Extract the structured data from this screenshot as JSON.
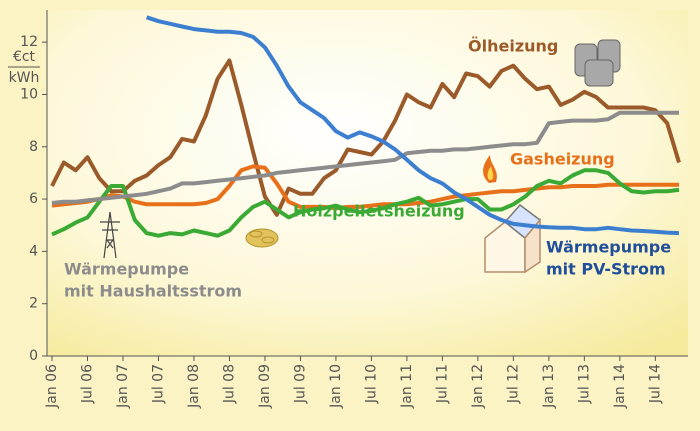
{
  "chart_data": {
    "type": "line",
    "y_unit": [
      "€ct",
      "kWh"
    ],
    "categories": [
      "Jan 06",
      null,
      null,
      "Jul 06",
      null,
      null,
      "Jan 07",
      null,
      null,
      "Jul 07",
      null,
      null,
      "Jan 08",
      null,
      null,
      "Jul 08",
      null,
      null,
      "Jan 09",
      null,
      null,
      "Jul 09",
      null,
      null,
      "Jan 10",
      null,
      null,
      "Jul 10",
      null,
      null,
      "Jan 11",
      null,
      null,
      "Jul 11",
      null,
      null,
      "Jan 12",
      null,
      null,
      "Jul 12",
      null,
      null,
      "Jan 13",
      null,
      null,
      "Jul 13",
      null,
      null,
      "Jan 14",
      null,
      null,
      "Jul 14",
      null,
      null
    ],
    "ylim": [
      0,
      13
    ],
    "yticks": [
      0,
      2,
      4,
      6,
      8,
      10,
      12
    ],
    "series": [
      {
        "name": [
          "Ölheizung"
        ],
        "color": "#9b5a2a",
        "values": [
          6.5,
          7.4,
          7.1,
          7.6,
          6.8,
          6.3,
          6.3,
          6.7,
          6.9,
          7.3,
          7.6,
          8.3,
          8.2,
          9.2,
          10.6,
          11.3,
          9.6,
          7.8,
          6.1,
          5.4,
          6.4,
          6.2,
          6.2,
          6.8,
          7.1,
          7.9,
          7.8,
          7.7,
          8.2,
          9.0,
          10.0,
          9.7,
          9.5,
          10.4,
          9.9,
          10.8,
          10.7,
          10.3,
          10.9,
          11.1,
          10.6,
          10.2,
          10.3,
          9.6,
          9.8,
          10.1,
          9.9,
          9.5,
          9.5,
          9.5,
          9.5,
          9.4,
          8.9,
          7.4
        ]
      },
      {
        "name": [
          "Gasheizung"
        ],
        "color": "#e8701a",
        "values": [
          5.75,
          5.8,
          5.85,
          5.9,
          6.0,
          6.15,
          6.1,
          5.9,
          5.8,
          5.8,
          5.8,
          5.8,
          5.8,
          5.85,
          6.0,
          6.5,
          7.1,
          7.25,
          7.2,
          6.6,
          5.9,
          5.7,
          5.7,
          5.7,
          5.65,
          5.7,
          5.7,
          5.75,
          5.8,
          5.8,
          5.8,
          5.85,
          5.9,
          6.0,
          6.1,
          6.15,
          6.2,
          6.25,
          6.3,
          6.3,
          6.35,
          6.4,
          6.45,
          6.45,
          6.5,
          6.5,
          6.5,
          6.55,
          6.55,
          6.55,
          6.55,
          6.55,
          6.55,
          6.55
        ]
      },
      {
        "name": [
          "Holzpelletsheizung"
        ],
        "color": "#3aaa35",
        "values": [
          4.65,
          4.85,
          5.1,
          5.3,
          5.9,
          6.5,
          6.5,
          5.2,
          4.7,
          4.6,
          4.7,
          4.65,
          4.8,
          4.7,
          4.6,
          4.8,
          5.3,
          5.7,
          5.9,
          5.6,
          5.3,
          5.5,
          5.6,
          5.65,
          5.75,
          5.6,
          5.5,
          5.55,
          5.65,
          5.8,
          5.9,
          6.05,
          5.75,
          5.8,
          5.9,
          6.0,
          6.0,
          5.6,
          5.6,
          5.8,
          6.1,
          6.5,
          6.7,
          6.6,
          6.9,
          7.1,
          7.1,
          7.0,
          6.6,
          6.3,
          6.25,
          6.3,
          6.3,
          6.35
        ]
      },
      {
        "name": [
          "Wärmepumpe",
          "mit Haushaltsstrom"
        ],
        "color": "#8c8c8c",
        "values": [
          5.85,
          5.9,
          5.9,
          5.95,
          6.0,
          6.05,
          6.1,
          6.15,
          6.2,
          6.3,
          6.4,
          6.6,
          6.6,
          6.65,
          6.7,
          6.75,
          6.8,
          6.85,
          6.9,
          7.0,
          7.05,
          7.1,
          7.15,
          7.2,
          7.25,
          7.3,
          7.35,
          7.4,
          7.45,
          7.5,
          7.75,
          7.8,
          7.85,
          7.85,
          7.9,
          7.9,
          7.95,
          8.0,
          8.05,
          8.1,
          8.1,
          8.15,
          8.9,
          8.95,
          9.0,
          9.0,
          9.0,
          9.05,
          9.3,
          9.3,
          9.3,
          9.3,
          9.3,
          9.3
        ]
      },
      {
        "name": [
          "Wärmepumpe",
          "mit PV-Strom"
        ],
        "color": "#3c7fd0",
        "label_color": "#1f4e9a",
        "values": [
          null,
          null,
          null,
          null,
          null,
          null,
          null,
          null,
          12.95,
          12.8,
          12.7,
          12.6,
          12.5,
          12.45,
          12.4,
          12.4,
          12.35,
          12.2,
          11.8,
          11.1,
          10.3,
          9.7,
          9.4,
          9.1,
          8.6,
          8.35,
          8.55,
          8.4,
          8.2,
          7.9,
          7.5,
          7.1,
          6.8,
          6.6,
          6.25,
          6.0,
          5.7,
          5.4,
          5.2,
          5.05,
          5.0,
          4.95,
          4.92,
          4.9,
          4.9,
          4.85,
          4.85,
          4.9,
          4.85,
          4.8,
          4.78,
          4.75,
          4.72,
          4.7
        ]
      }
    ]
  }
}
